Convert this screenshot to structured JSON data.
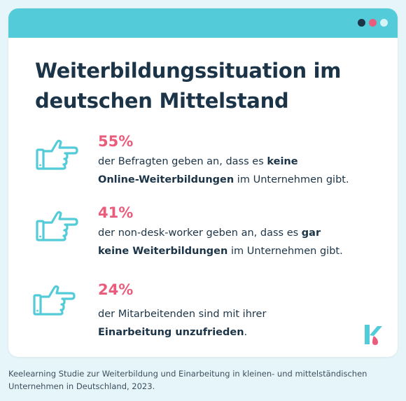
{
  "colors": {
    "background": "#e6f5f9",
    "card": "#ffffff",
    "topbar": "#54cbd8",
    "accent_pink": "#e95c7c",
    "text_dark": "#1c3447",
    "icon_stroke": "#54cbd8",
    "dots": [
      "#1c3447",
      "#e95c7c",
      "#d6f4f7"
    ]
  },
  "title": {
    "line1": "Weiterbildungssituation im",
    "line2": "deutschen Mittelstand"
  },
  "stats": [
    {
      "percent": "55%",
      "icon": "thumb-pointing-right-icon",
      "line1_pre": "der Befragten geben an, dass es ",
      "line1_bold": "keine",
      "line2_bold": "Online-Weiterbildungen",
      "line2_post": " im Unternehmen gibt."
    },
    {
      "percent": "41%",
      "icon": "thumb-pointing-right-icon",
      "line1_pre": "der non-desk-worker geben an, dass es ",
      "line1_bold": "gar",
      "line2_bold": "keine Weiterbildungen",
      "line2_post": " im Unternehmen gibt."
    },
    {
      "percent": "24%",
      "icon": "thumb-pointing-right-icon",
      "line1_pre": "der Mitarbeitenden sind mit ihrer",
      "line1_bold": "",
      "line2_bold": "Einarbeitung unzufrieden",
      "line2_post": "."
    }
  ],
  "logo": {
    "icon": "keelearning-logo-icon"
  },
  "footer": {
    "line1": "Keelearning Studie zur Weiterbildung und Einarbeitung in kleinen- und mittelständischen",
    "line2": "Unternehmen in Deutschland, 2023."
  }
}
